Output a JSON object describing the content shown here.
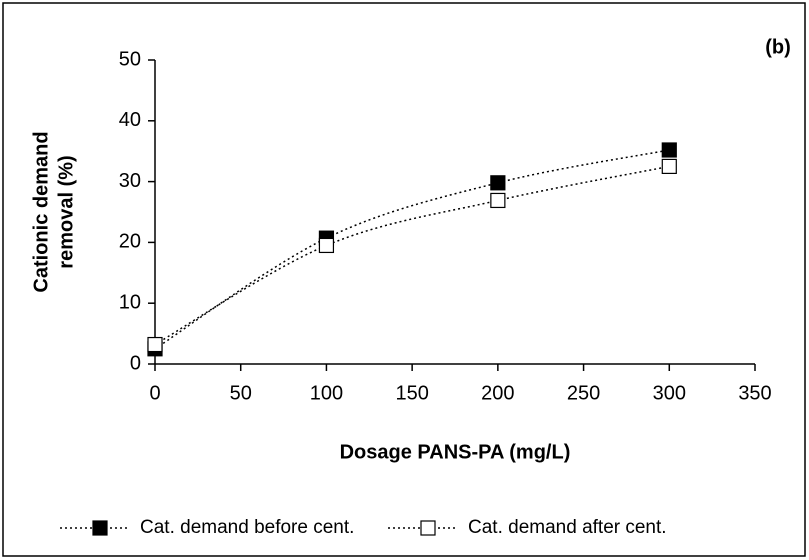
{
  "chart_data": {
    "type": "line",
    "title": "(b)",
    "xlabel": "Dosage PANS-PA (mg/L)",
    "ylabel": [
      "Cationic demand",
      "removal (%)"
    ],
    "x": [
      0,
      100,
      200,
      300
    ],
    "series": [
      {
        "name": "Cat. demand before cent.",
        "color": "#000000",
        "values": [
          2.5,
          20.7,
          29.8,
          35.2
        ]
      },
      {
        "name": "Cat. demand after cent.",
        "color": "#ffffff",
        "values": [
          3.2,
          19.5,
          26.9,
          32.5
        ]
      }
    ],
    "xlim": [
      0,
      350
    ],
    "xticks": [
      0,
      50,
      100,
      150,
      200,
      250,
      300,
      350
    ],
    "ylim": [
      0,
      50
    ],
    "yticks": [
      0,
      10,
      20,
      30,
      40,
      50
    ],
    "legend": "bottom",
    "grid": false
  }
}
